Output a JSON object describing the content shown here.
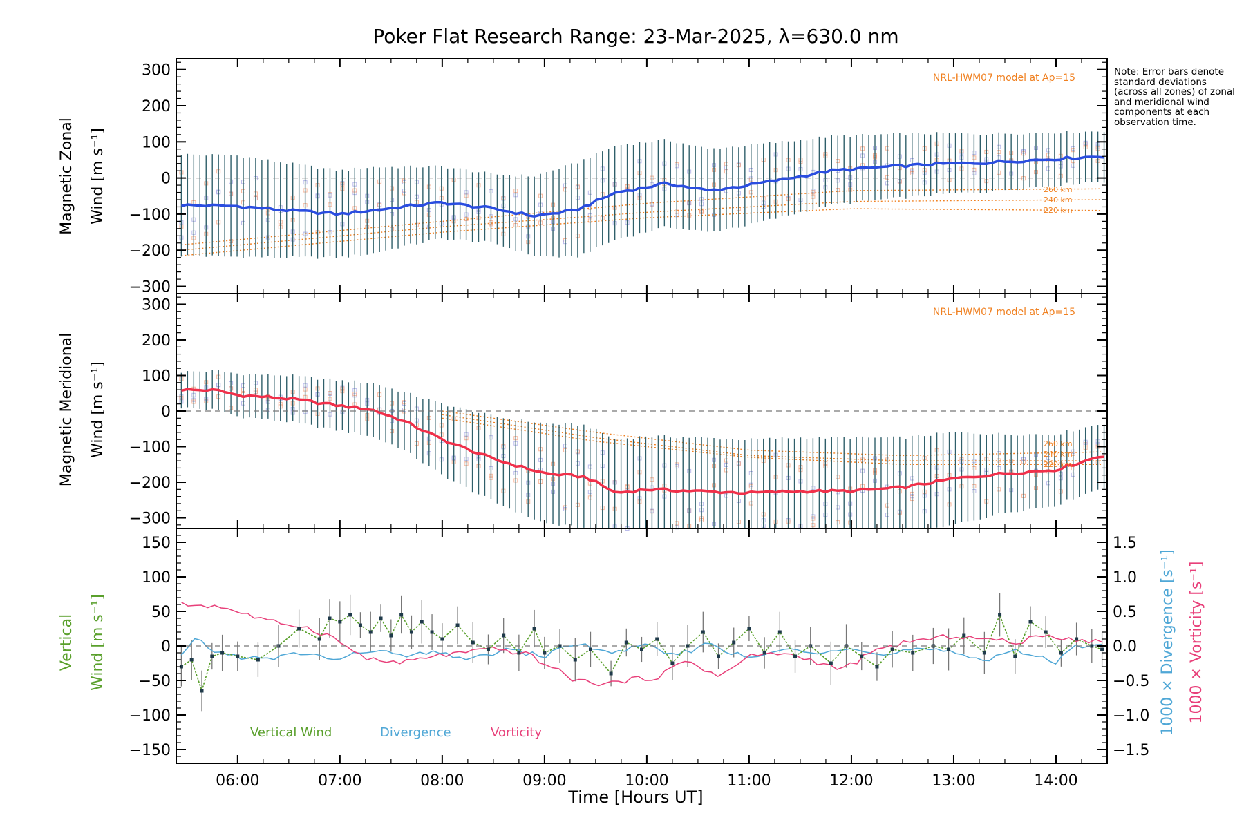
{
  "chart_data": {
    "type": "line",
    "title": "Poker Flat Research Range: 23-Mar-2025, λ=630.0 nm",
    "xlabel": "Time [Hours UT]",
    "xlim": [
      5.4,
      14.5
    ],
    "xticks": [
      6,
      7,
      8,
      9,
      10,
      11,
      12,
      13,
      14
    ],
    "xtick_labels": [
      "06:00",
      "07:00",
      "08:00",
      "09:00",
      "10:00",
      "11:00",
      "12:00",
      "13:00",
      "14:00"
    ],
    "note": "Note: Error bars denote standard deviations (across all zones) of zonal and meridional wind components at each observation time.",
    "panels": [
      {
        "id": "zonal",
        "ylabel_line1": "Magnetic Zonal",
        "ylabel_line2": "Wind [m s⁻¹]",
        "ylim": [
          -320,
          330
        ],
        "yticks": [
          -300,
          -200,
          -100,
          0,
          100,
          200,
          300
        ],
        "model_label": "NRL-HWM07 model at Ap=15",
        "model_altitude_labels": [
          "260 km",
          "240 km",
          "220 km"
        ],
        "series": {
          "name": "Magnetic Zonal Wind",
          "color": "#2a4de0",
          "x": [
            5.45,
            6.0,
            6.5,
            7.0,
            7.3,
            7.6,
            8.0,
            8.5,
            8.9,
            9.3,
            9.7,
            10.2,
            10.6,
            11.0,
            11.5,
            11.8,
            12.3,
            12.8,
            13.3,
            13.8,
            14.3,
            14.45
          ],
          "y": [
            -75,
            -78,
            -90,
            -100,
            -90,
            -80,
            -68,
            -85,
            -105,
            -90,
            -40,
            -15,
            -35,
            -20,
            5,
            20,
            30,
            38,
            42,
            50,
            58,
            60
          ],
          "error": [
            140,
            140,
            130,
            120,
            120,
            110,
            100,
            95,
            110,
            130,
            130,
            120,
            115,
            110,
            100,
            95,
            90,
            85,
            80,
            75,
            70,
            70
          ]
        },
        "model_curves": [
          {
            "altitude": "260 km",
            "color": "#f08020",
            "x": [
              5.45,
              8.0,
              10.0,
              12.0,
              14.45
            ],
            "y": [
              -185,
              -120,
              -70,
              -35,
              -30
            ]
          },
          {
            "altitude": "240 km",
            "color": "#f08020",
            "x": [
              5.45,
              8.0,
              10.0,
              12.0,
              14.45
            ],
            "y": [
              -200,
              -135,
              -95,
              -65,
              -60
            ]
          },
          {
            "altitude": "220 km",
            "color": "#f08020",
            "x": [
              5.45,
              8.0,
              10.0,
              12.0,
              14.45
            ],
            "y": [
              -215,
              -150,
              -110,
              -85,
              -90
            ]
          }
        ]
      },
      {
        "id": "meridional",
        "ylabel_line1": "Magnetic Meridional",
        "ylabel_line2": "Wind [m s⁻¹]",
        "ylim": [
          -330,
          330
        ],
        "yticks": [
          -300,
          -200,
          -100,
          0,
          100,
          200,
          300
        ],
        "model_label": "NRL-HWM07 model at Ap=15",
        "model_altitude_labels": [
          "260 km",
          "240 km",
          "220 km"
        ],
        "series": {
          "name": "Magnetic Meridional Wind",
          "color": "#f0304a",
          "x": [
            5.45,
            5.8,
            6.0,
            6.5,
            7.0,
            7.3,
            7.6,
            8.0,
            8.5,
            9.0,
            9.4,
            9.7,
            10.0,
            10.5,
            11.0,
            11.5,
            12.0,
            12.5,
            13.0,
            13.5,
            14.0,
            14.45
          ],
          "y": [
            60,
            58,
            45,
            35,
            15,
            5,
            -25,
            -80,
            -135,
            -175,
            -185,
            -230,
            -220,
            -225,
            -230,
            -225,
            -225,
            -215,
            -190,
            -175,
            -165,
            -125
          ],
          "error": [
            50,
            55,
            60,
            65,
            70,
            75,
            80,
            100,
            120,
            140,
            145,
            150,
            150,
            150,
            150,
            150,
            150,
            140,
            130,
            110,
            100,
            90
          ]
        },
        "model_curves": [
          {
            "altitude": "260 km",
            "color": "#f08020",
            "x": [
              8.0,
              9.5,
              11.0,
              12.5,
              14.45
            ],
            "y": [
              0,
              -60,
              -110,
              -125,
              -115
            ]
          },
          {
            "altitude": "240 km",
            "color": "#f08020",
            "x": [
              8.0,
              9.5,
              11.0,
              12.5,
              14.45
            ],
            "y": [
              -10,
              -75,
              -125,
              -140,
              -140
            ]
          },
          {
            "altitude": "220 km",
            "color": "#f08020",
            "x": [
              8.0,
              9.5,
              11.0,
              12.5,
              14.45
            ],
            "y": [
              -20,
              -85,
              -130,
              -150,
              -150
            ]
          }
        ]
      },
      {
        "id": "vertical",
        "ylabel_line1": "Vertical",
        "ylabel_line2": "Wind [m s⁻¹]",
        "ylim": [
          -170,
          170
        ],
        "yticks": [
          -150,
          -100,
          -50,
          0,
          50,
          100,
          150
        ],
        "right_axis": {
          "ylim": [
            -1.7,
            1.7
          ],
          "yticks": [
            -1.5,
            -1.0,
            -0.5,
            0.0,
            0.5,
            1.0,
            1.5
          ],
          "ytick_labels": [
            "−1.5",
            "−1.0",
            "−0.5",
            "0.0",
            "0.5",
            "1.0",
            "1.5"
          ],
          "label_divergence": "1000 × Divergence [s⁻¹]",
          "label_vorticity": "1000 × Vorticity [s⁻¹]"
        },
        "legend": [
          "Vertical Wind",
          "Divergence",
          "Vorticity"
        ],
        "series": [
          {
            "name": "Vertical Wind",
            "color": "#5aa02c",
            "axis": "left",
            "x": [
              5.45,
              5.55,
              5.65,
              5.75,
              5.85,
              6.0,
              6.2,
              6.4,
              6.6,
              6.8,
              6.9,
              7.0,
              7.1,
              7.2,
              7.3,
              7.4,
              7.5,
              7.6,
              7.7,
              7.8,
              7.9,
              8.0,
              8.15,
              8.3,
              8.45,
              8.6,
              8.75,
              8.9,
              9.0,
              9.15,
              9.3,
              9.45,
              9.65,
              9.8,
              9.95,
              10.1,
              10.25,
              10.4,
              10.55,
              10.7,
              10.85,
              11.0,
              11.15,
              11.3,
              11.45,
              11.6,
              11.8,
              11.95,
              12.1,
              12.25,
              12.4,
              12.6,
              12.8,
              12.95,
              13.1,
              13.3,
              13.45,
              13.6,
              13.75,
              13.9,
              14.05,
              14.2,
              14.35,
              14.45
            ],
            "y": [
              -30,
              -20,
              -65,
              -15,
              -10,
              -15,
              -20,
              0,
              25,
              10,
              40,
              35,
              45,
              30,
              20,
              40,
              15,
              45,
              20,
              35,
              20,
              10,
              30,
              5,
              -5,
              15,
              -10,
              25,
              -10,
              0,
              -20,
              -5,
              -40,
              5,
              -5,
              10,
              -25,
              0,
              20,
              -15,
              5,
              25,
              -10,
              20,
              -15,
              0,
              -25,
              0,
              -15,
              -30,
              -5,
              -10,
              0,
              -5,
              15,
              -10,
              45,
              -15,
              35,
              20,
              -10,
              10,
              0,
              -5
            ]
          },
          {
            "name": "Divergence",
            "color": "#4fa7d6",
            "axis": "right",
            "x": [
              5.45,
              5.6,
              5.8,
              6.0,
              6.3,
              6.6,
              7.0,
              7.3,
              7.6,
              8.0,
              8.3,
              8.6,
              9.0,
              9.3,
              9.6,
              10.0,
              10.3,
              10.6,
              11.0,
              11.3,
              11.6,
              12.0,
              12.3,
              12.6,
              13.0,
              13.3,
              13.6,
              14.0,
              14.2,
              14.45
            ],
            "y": [
              -0.15,
              0.1,
              -0.1,
              -0.15,
              -0.2,
              -0.1,
              -0.2,
              -0.05,
              -0.15,
              -0.1,
              -0.2,
              -0.05,
              -0.15,
              0.05,
              -0.1,
              0.0,
              -0.15,
              0.05,
              -0.2,
              -0.05,
              -0.1,
              0.0,
              -0.15,
              -0.05,
              -0.1,
              -0.2,
              -0.05,
              -0.25,
              0.0,
              0.05
            ]
          },
          {
            "name": "Vorticity",
            "color": "#e8407a",
            "axis": "right",
            "x": [
              5.45,
              5.8,
              6.0,
              6.3,
              6.6,
              6.9,
              7.1,
              7.3,
              7.6,
              7.9,
              8.2,
              8.5,
              8.8,
              9.0,
              9.3,
              9.6,
              9.8,
              10.1,
              10.4,
              10.7,
              11.0,
              11.3,
              11.6,
              11.9,
              12.2,
              12.5,
              12.8,
              13.0,
              13.3,
              13.6,
              13.9,
              14.2,
              14.45
            ],
            "y": [
              0.6,
              0.58,
              0.5,
              0.35,
              0.3,
              0.15,
              -0.05,
              -0.2,
              -0.25,
              -0.15,
              -0.1,
              -0.05,
              -0.1,
              -0.25,
              -0.5,
              -0.55,
              -0.5,
              -0.45,
              -0.2,
              -0.45,
              -0.15,
              -0.1,
              -0.2,
              -0.35,
              -0.1,
              0.05,
              0.1,
              0.15,
              0.1,
              0.05,
              0.15,
              0.1,
              0.05
            ]
          }
        ]
      }
    ]
  }
}
